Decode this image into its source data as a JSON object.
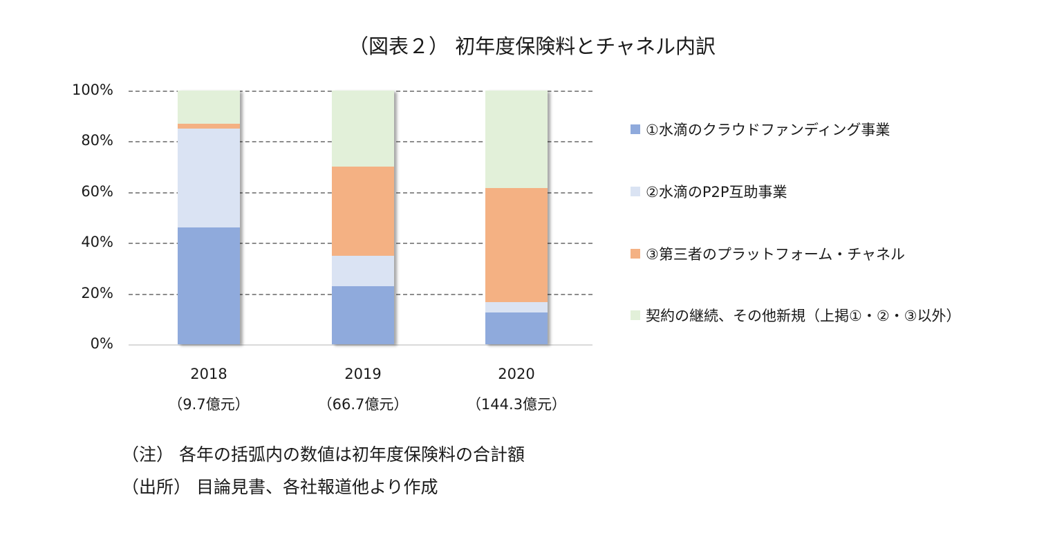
{
  "title": "（図表２） 初年度保険料とチャネル内訳",
  "chart_data": {
    "type": "bar",
    "stacked": true,
    "percent": true,
    "title": "（図表２） 初年度保険料とチャネル内訳",
    "xlabel": "",
    "ylabel": "",
    "ylim": [
      0,
      100
    ],
    "yticks": [
      "0%",
      "20%",
      "40%",
      "60%",
      "80%",
      "100%"
    ],
    "grid": true,
    "legend_position": "right",
    "categories": [
      "2018",
      "2019",
      "2020"
    ],
    "category_sublabels": [
      "（9.7億元）",
      "（66.7億元）",
      "（144.3億元）"
    ],
    "totals_hundred_million_yuan": [
      9.7,
      66.7,
      144.3
    ],
    "series": [
      {
        "name": "①水滴のクラウドファンディング事業",
        "color": "#8faadc",
        "values": [
          46,
          23,
          12.5
        ]
      },
      {
        "name": "②水滴のP2P互助事業",
        "color": "#dae3f3",
        "values": [
          39,
          12,
          4
        ]
      },
      {
        "name": "③第三者のプラットフォーム・チャネル",
        "color": "#f4b183",
        "values": [
          2,
          35,
          45
        ]
      },
      {
        "name": "契約の継続、その他新規（上掲①・②・③以外）",
        "color": "#e2f0d9",
        "values": [
          13,
          30,
          38.5
        ]
      }
    ]
  },
  "notes": [
    "（注） 各年の括弧内の数値は初年度保険料の合計額",
    "（出所） 目論見書、各社報道他より作成"
  ]
}
